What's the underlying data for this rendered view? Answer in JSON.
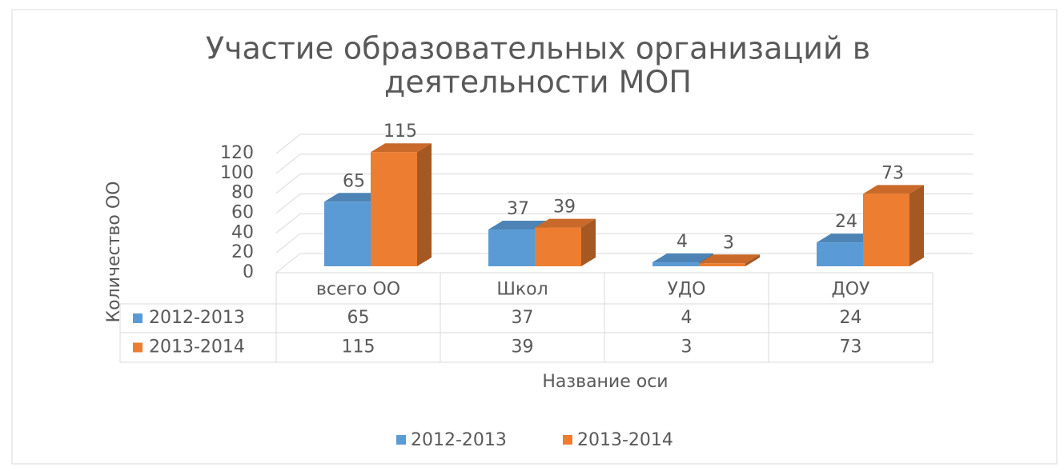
{
  "chart_data": {
    "type": "bar3d",
    "title_lines": [
      "Участие образовательных организаций в",
      "деятельности МОП"
    ],
    "y_axis_label": "Количество ОО",
    "x_axis_label": "Название оси",
    "categories": [
      "всего ОО",
      "Школ",
      "УДО",
      "ДОУ"
    ],
    "series": [
      {
        "name": "2012-2013",
        "color": "#5b9bd5",
        "values": [
          65,
          37,
          4,
          24
        ]
      },
      {
        "name": "2013-2014",
        "color": "#ed7d31",
        "values": [
          115,
          39,
          3,
          73
        ]
      }
    ],
    "ylim": [
      0,
      120
    ],
    "yticks": [
      0,
      20,
      40,
      60,
      80,
      100,
      120
    ],
    "grid": true,
    "data_table": true,
    "legend": "bottom"
  }
}
